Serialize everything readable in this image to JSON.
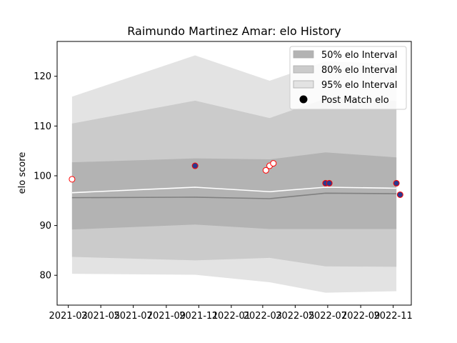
{
  "chart_data": {
    "type": "line",
    "title": "Raimundo Martinez Amar: elo History",
    "xlabel": "",
    "ylabel": "elo score",
    "x_ticks": [
      "2021-03",
      "2021-05",
      "2021-07",
      "2021-09",
      "2021-11",
      "2022-01",
      "2022-03",
      "2022-05",
      "2022-07",
      "2022-09",
      "2022-11"
    ],
    "y_ticks": [
      80,
      90,
      100,
      110,
      120
    ],
    "xlim": [
      "2021-02-08",
      "2022-12-05"
    ],
    "ylim": [
      74,
      127
    ],
    "grid": false,
    "legend_position": "top-right",
    "legend": [
      {
        "label": "50% elo Interval",
        "kind": "band-50"
      },
      {
        "label": "80% elo Interval",
        "kind": "band-80"
      },
      {
        "label": "95% elo Interval",
        "kind": "band-95"
      },
      {
        "label": "Post Match elo",
        "kind": "marker"
      }
    ],
    "band_x": [
      "2021-03-08",
      "2021-10-25",
      "2022-03-14",
      "2022-06-27",
      "2022-11-07"
    ],
    "band_95": {
      "lower": [
        80.3,
        80.1,
        78.6,
        76.5,
        76.8
      ],
      "upper": [
        115.9,
        124.2,
        119.1,
        123.0,
        122.5
      ]
    },
    "band_80": {
      "lower": [
        83.7,
        83.0,
        83.5,
        81.8,
        81.7
      ],
      "upper": [
        110.5,
        115.1,
        111.6,
        115.5,
        115.0
      ]
    },
    "band_50": {
      "lower": [
        89.2,
        90.2,
        89.3,
        89.3,
        89.3
      ],
      "upper": [
        102.7,
        103.5,
        103.3,
        104.7,
        103.7
      ]
    },
    "mean_line": {
      "x": [
        "2021-03-08",
        "2021-10-25",
        "2022-03-14",
        "2022-06-27",
        "2022-11-07"
      ],
      "y": [
        96.6,
        97.7,
        96.8,
        97.7,
        97.5
      ]
    },
    "median_line": {
      "x": [
        "2021-03-08",
        "2021-10-25",
        "2022-03-14",
        "2022-06-27",
        "2022-11-07"
      ],
      "y": [
        95.6,
        95.7,
        95.4,
        96.5,
        96.4
      ]
    },
    "points_open": [
      {
        "x": "2021-03-08",
        "y": 99.3
      },
      {
        "x": "2022-03-07",
        "y": 101.1
      },
      {
        "x": "2022-03-14",
        "y": 102.0
      },
      {
        "x": "2022-03-21",
        "y": 102.5
      }
    ],
    "points_filled": [
      {
        "x": "2021-10-25",
        "y": 102.0
      },
      {
        "x": "2022-06-27",
        "y": 98.5
      },
      {
        "x": "2022-07-04",
        "y": 98.5
      },
      {
        "x": "2022-11-07",
        "y": 98.5
      },
      {
        "x": "2022-11-14",
        "y": 96.2
      }
    ],
    "colors": {
      "band_50": "#b3b3b3",
      "band_80": "#cbcbcb",
      "band_95": "#e3e3e3",
      "mean_line": "#ffffff",
      "median_line": "#808080",
      "marker_edge": "#ff0000",
      "marker_fill_filled": "#2b3a8f",
      "marker_fill_open": "#ffffff"
    }
  }
}
